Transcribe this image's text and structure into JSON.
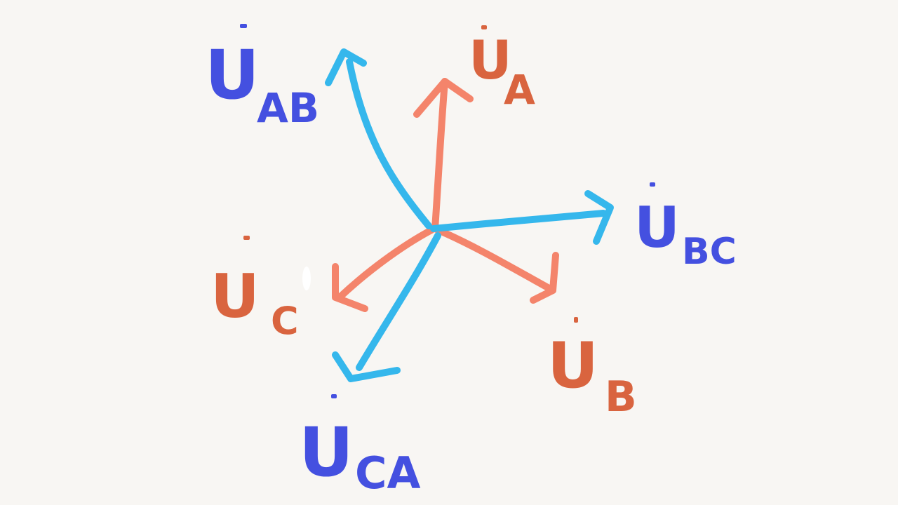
{
  "colors": {
    "background": "#f8f6f3",
    "phase_arrow": "#f4846b",
    "line_arrow": "#35b7ec",
    "phase_label": "#d9643f",
    "line_label": "#4450e0"
  },
  "vectors": {
    "phase": [
      {
        "id": "UA",
        "main": "U",
        "sub": "A"
      },
      {
        "id": "UB",
        "main": "U",
        "sub": "B"
      },
      {
        "id": "UC",
        "main": "U",
        "sub": "C"
      }
    ],
    "line": [
      {
        "id": "UAB",
        "main": "U",
        "sub": "AB"
      },
      {
        "id": "UBC",
        "main": "U",
        "sub": "BC"
      },
      {
        "id": "UCA",
        "main": "U",
        "sub": "CA"
      }
    ]
  }
}
